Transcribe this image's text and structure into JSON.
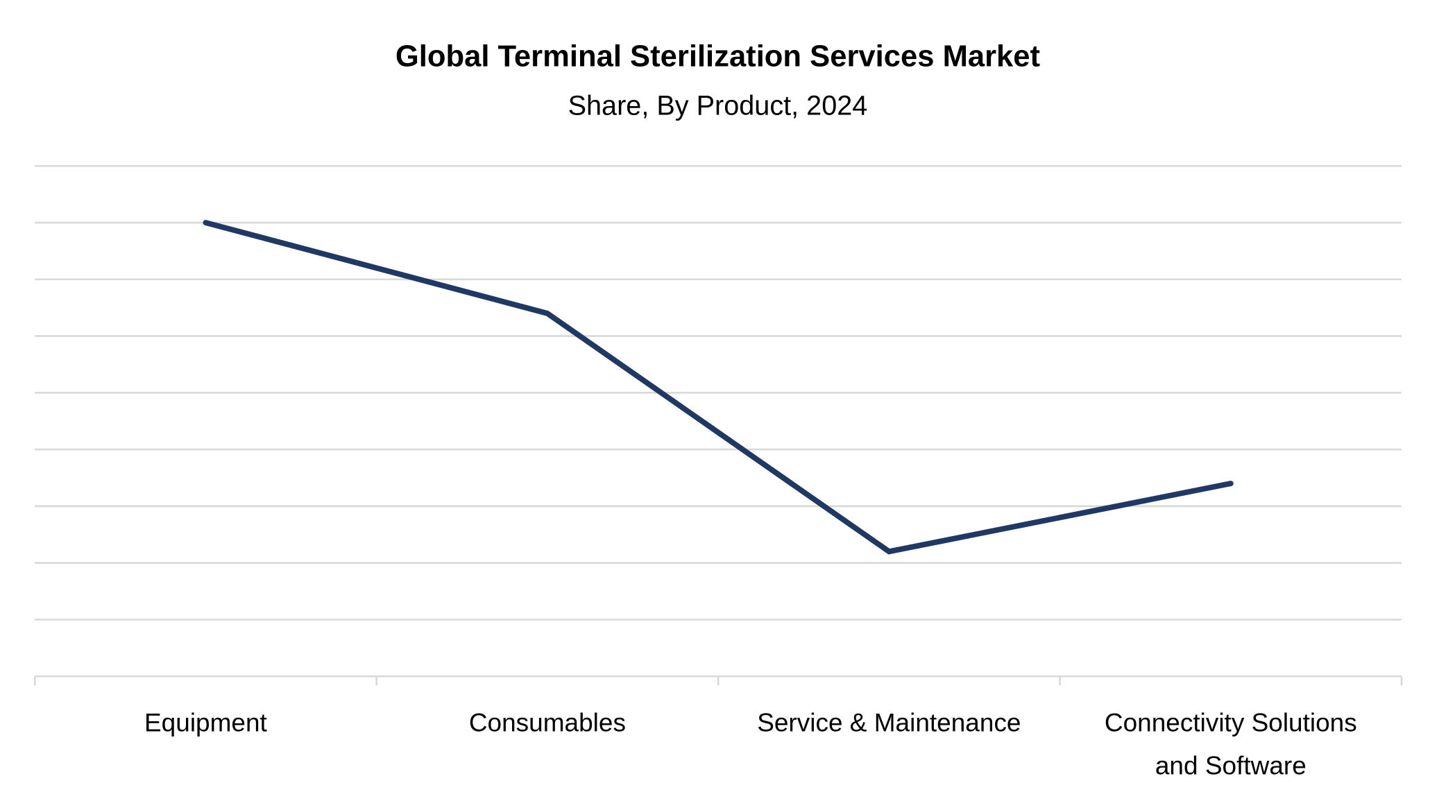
{
  "chart_data": {
    "type": "line",
    "title": "Global Terminal Sterilization Services Market",
    "subtitle": "Share, By Product, 2024",
    "categories": [
      "Equipment",
      "Consumables",
      "Service & Maintenance",
      [
        "Connectivity Solutions",
        "and Software"
      ]
    ],
    "series": [
      {
        "values": [
          8.0,
          6.4,
          2.2,
          3.4
        ]
      }
    ],
    "xlabel": "",
    "ylabel": "",
    "ylim": [
      0,
      9
    ],
    "y_tick_labels_shown": false,
    "grid": true,
    "legend": "none",
    "colors": {
      "line": "#1F3864",
      "grid": "#D9D9D9",
      "axis": "#D9D9D9"
    }
  }
}
